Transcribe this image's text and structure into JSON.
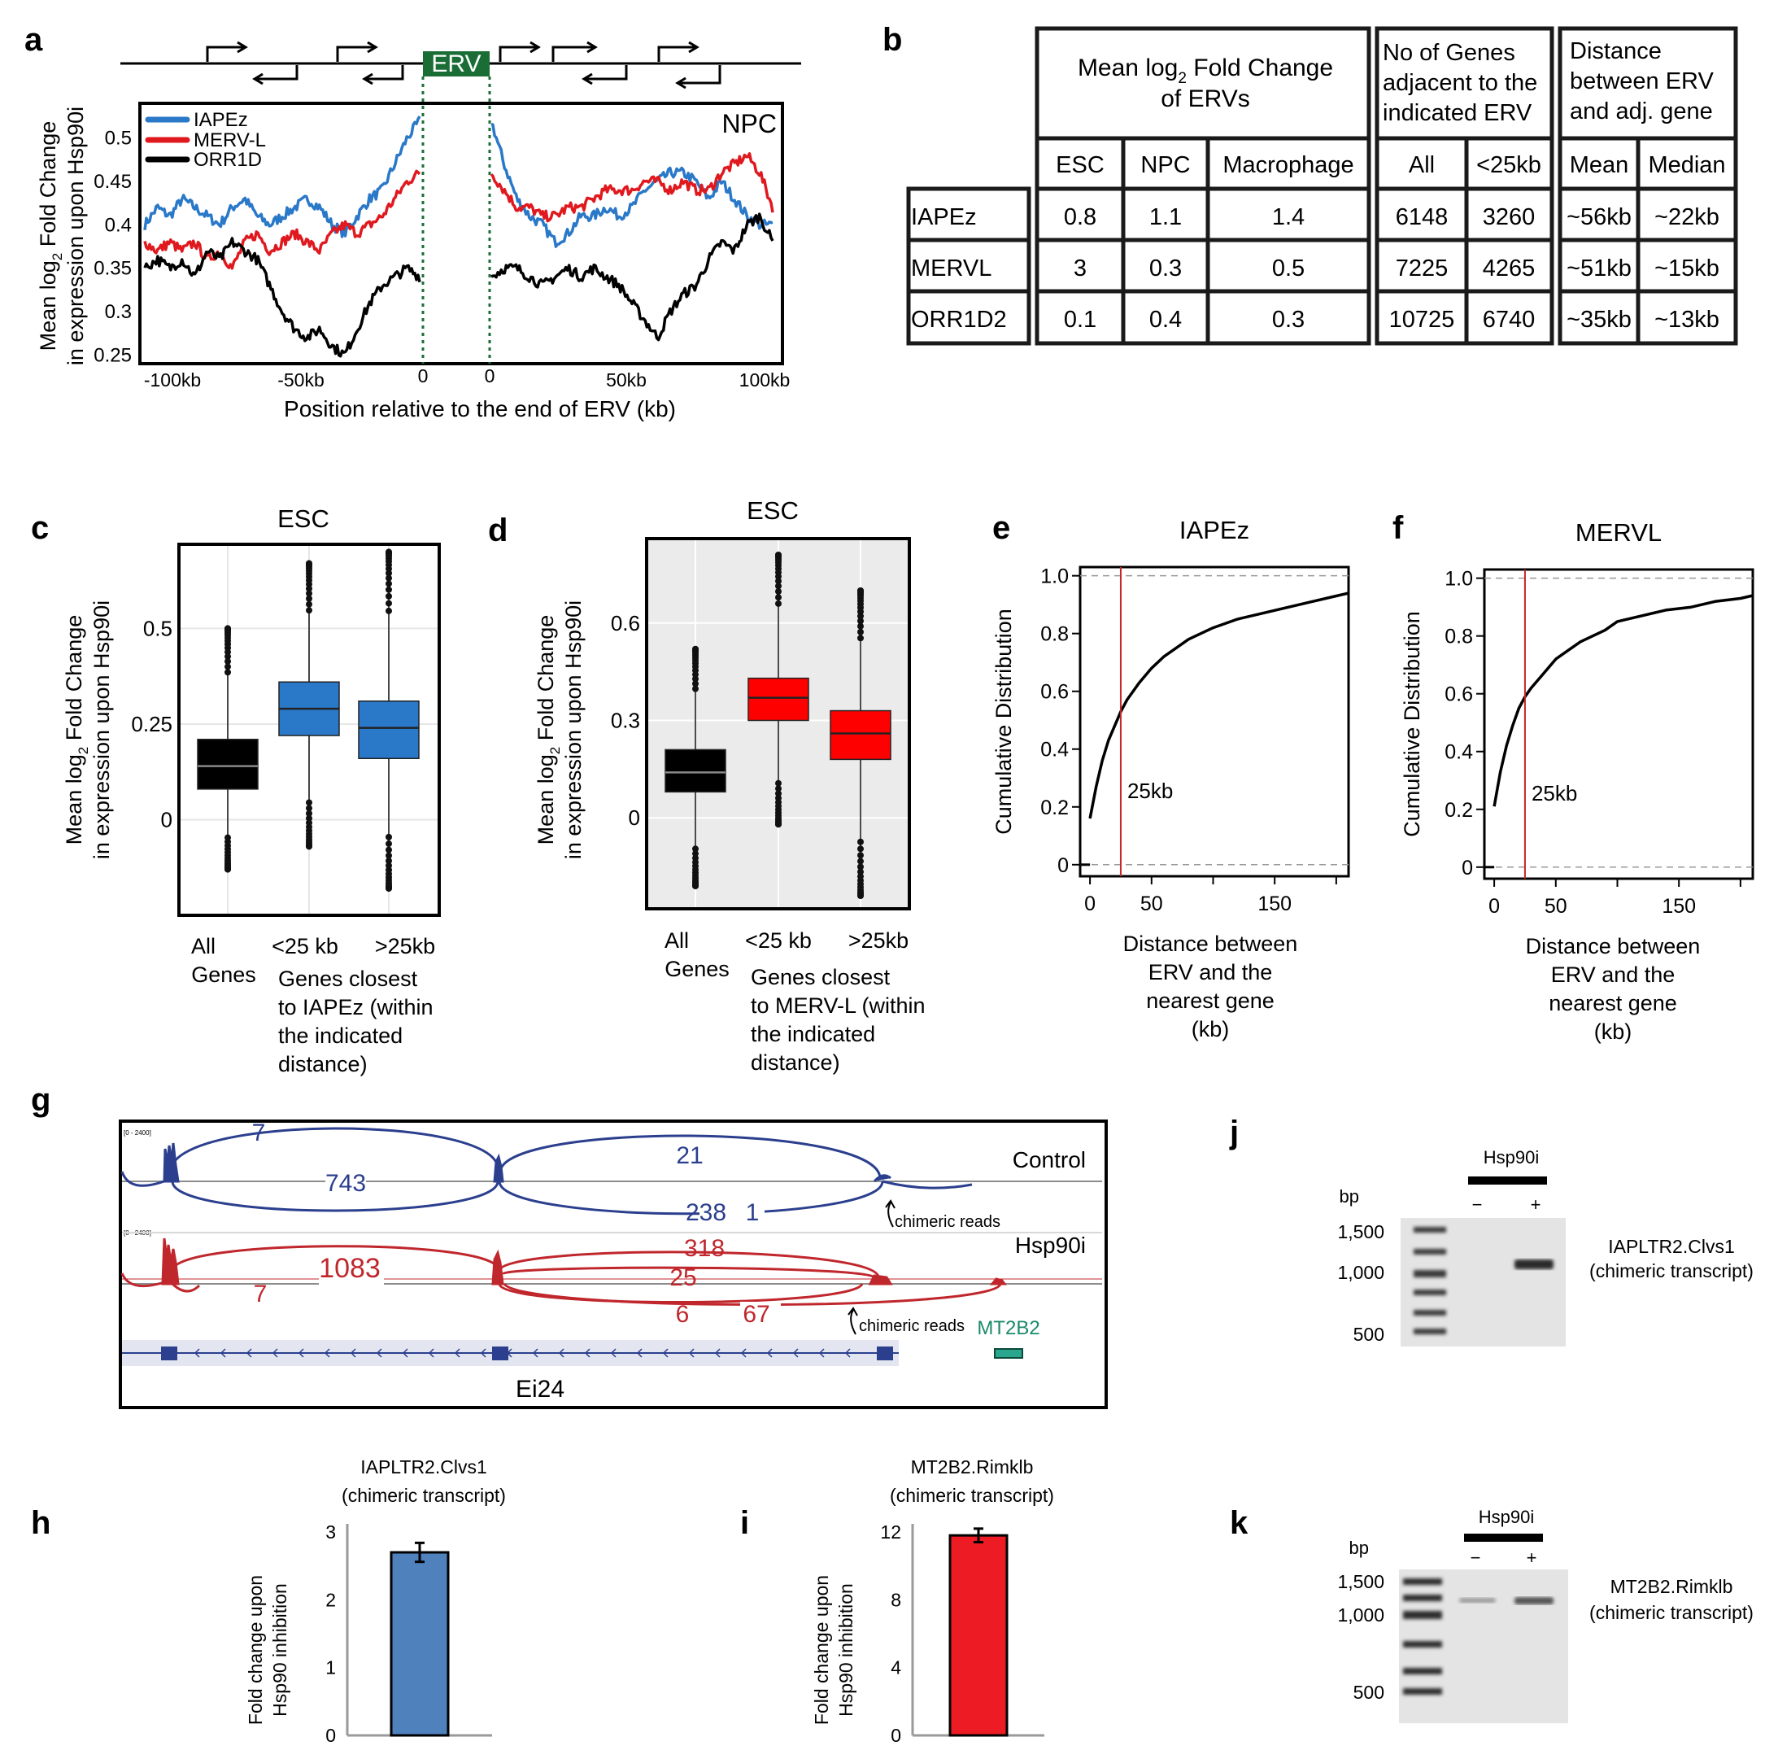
{
  "colors": {
    "iapez": "#2a78c8",
    "mervl": "#e0191f",
    "orr1d": "#000000",
    "erv_box": "#1a6e35",
    "control": "#2b3f8e",
    "hsp90i": "#c0272d",
    "mt2b2": "#1a8a6a",
    "bar_h": "#4f81bd",
    "bar_i": "#ed1c24"
  },
  "panel_labels": {
    "a": "a",
    "b": "b",
    "c": "c",
    "d": "d",
    "e": "e",
    "f": "f",
    "g": "g",
    "h": "h",
    "i": "i",
    "j": "j",
    "k": "k"
  },
  "chart_data": [
    {
      "id": "a",
      "type": "line",
      "erv_label": "ERV",
      "condition": "NPC",
      "ylabel_line1": "Mean log",
      "ylabel_sub": "2",
      "ylabel_line1b": " Fold Change",
      "ylabel_line2": "in expression upon Hsp90i",
      "xlabel": "Position relative to the end of ERV (kb)",
      "xticks": [
        "-100kb",
        "-50kb",
        "0",
        "0",
        "50kb",
        "100kb"
      ],
      "yticks": [
        "0.5",
        "0.45",
        "0.4",
        "0.35",
        "0.3",
        "0.25"
      ],
      "ylim": [
        0.24,
        0.54
      ],
      "series": [
        {
          "name": "IAPEz",
          "left": [
            0.4,
            0.42,
            0.41,
            0.43,
            0.42,
            0.41,
            0.4,
            0.42,
            0.43,
            0.41,
            0.4,
            0.41,
            0.42,
            0.43,
            0.42,
            0.4,
            0.39,
            0.41,
            0.43,
            0.44,
            0.47,
            0.5,
            0.52
          ],
          "right": [
            0.52,
            0.47,
            0.43,
            0.41,
            0.4,
            0.38,
            0.39,
            0.41,
            0.41,
            0.42,
            0.41,
            0.42,
            0.44,
            0.45,
            0.46,
            0.46,
            0.45,
            0.43,
            0.45,
            0.43,
            0.41,
            0.4,
            0.4
          ]
        },
        {
          "name": "MERV-L",
          "left": [
            0.38,
            0.37,
            0.38,
            0.37,
            0.38,
            0.36,
            0.37,
            0.35,
            0.38,
            0.39,
            0.37,
            0.38,
            0.39,
            0.38,
            0.37,
            0.39,
            0.4,
            0.39,
            0.4,
            0.41,
            0.43,
            0.45,
            0.46
          ],
          "right": [
            0.46,
            0.44,
            0.42,
            0.42,
            0.41,
            0.41,
            0.42,
            0.42,
            0.43,
            0.44,
            0.44,
            0.44,
            0.45,
            0.45,
            0.44,
            0.45,
            0.44,
            0.44,
            0.46,
            0.47,
            0.48,
            0.46,
            0.42
          ]
        },
        {
          "name": "ORR1D",
          "left": [
            0.35,
            0.36,
            0.35,
            0.36,
            0.34,
            0.37,
            0.36,
            0.38,
            0.37,
            0.36,
            0.33,
            0.3,
            0.28,
            0.27,
            0.28,
            0.26,
            0.25,
            0.28,
            0.31,
            0.33,
            0.34,
            0.35,
            0.34
          ],
          "right": [
            0.34,
            0.35,
            0.35,
            0.34,
            0.33,
            0.34,
            0.35,
            0.34,
            0.35,
            0.34,
            0.33,
            0.31,
            0.29,
            0.27,
            0.3,
            0.32,
            0.33,
            0.36,
            0.38,
            0.37,
            0.4,
            0.41,
            0.38
          ]
        }
      ]
    },
    {
      "id": "c",
      "type": "box",
      "title": "ESC",
      "ylabel_line1": "Mean log",
      "ylabel_sub": "2",
      "ylabel_line1b": " Fold Change",
      "ylabel_line2": "in expression upon Hsp90i",
      "yticks": [
        "0.5",
        "0.25",
        "0"
      ],
      "ylim": [
        -0.25,
        0.72
      ],
      "categories": [
        "All Genes",
        "<25 kb",
        ">25kb"
      ],
      "cat_line1": [
        "All",
        "<25 kb",
        ">25kb"
      ],
      "cat_line2": [
        "Genes",
        "",
        ""
      ],
      "caption": [
        "Genes closest",
        "to IAPEz (within",
        "the indicated",
        "distance)"
      ],
      "boxes": [
        {
          "q1": 0.08,
          "median": 0.14,
          "q3": 0.21,
          "wlo": -0.13,
          "whi": 0.5,
          "color": "#000000"
        },
        {
          "q1": 0.22,
          "median": 0.29,
          "q3": 0.36,
          "wlo": -0.07,
          "whi": 0.67,
          "color": "#2a78c8"
        },
        {
          "q1": 0.16,
          "median": 0.24,
          "q3": 0.31,
          "wlo": -0.18,
          "whi": 0.7,
          "color": "#2a78c8"
        }
      ]
    },
    {
      "id": "d",
      "type": "box",
      "title": "ESC",
      "ylabel_line1": "Mean log",
      "ylabel_sub": "2",
      "ylabel_line1b": " Fold Change",
      "ylabel_line2": "in expression upon Hsp90i",
      "yticks": [
        "0.6",
        "0.3",
        "0"
      ],
      "ylim": [
        -0.28,
        0.86
      ],
      "categories": [
        "All Genes",
        "<25 kb",
        ">25kb"
      ],
      "cat_line1": [
        "All",
        "<25 kb",
        ">25kb"
      ],
      "cat_line2": [
        "Genes",
        "",
        ""
      ],
      "caption": [
        "Genes closest",
        "to MERV-L (within",
        "the indicated",
        "distance)"
      ],
      "boxes": [
        {
          "q1": 0.08,
          "median": 0.14,
          "q3": 0.21,
          "wlo": -0.21,
          "whi": 0.52,
          "color": "#000000"
        },
        {
          "q1": 0.3,
          "median": 0.37,
          "q3": 0.43,
          "wlo": -0.02,
          "whi": 0.81,
          "color": "#ff0000"
        },
        {
          "q1": 0.18,
          "median": 0.26,
          "q3": 0.33,
          "wlo": -0.24,
          "whi": 0.7,
          "color": "#ff0000"
        }
      ]
    },
    {
      "id": "e",
      "type": "line",
      "title": "IAPEz",
      "ylabel": "Cumulative Distribution",
      "xlabel": [
        "Distance between",
        "ERV and the",
        "nearest gene",
        "(kb)"
      ],
      "xticks": [
        "0",
        "50",
        "150"
      ],
      "yticks": [
        "1.0",
        "0.8",
        "0.6",
        "0.4",
        "0.2",
        "0"
      ],
      "xlim": [
        -8,
        210
      ],
      "ylim": [
        -0.04,
        1.03
      ],
      "cutoff": 25,
      "cutoff_label": "25kb",
      "x": [
        0,
        5,
        10,
        15,
        20,
        25,
        30,
        40,
        50,
        60,
        70,
        80,
        90,
        100,
        120,
        140,
        160,
        180,
        200,
        210
      ],
      "y": [
        0.16,
        0.27,
        0.36,
        0.43,
        0.48,
        0.53,
        0.57,
        0.63,
        0.68,
        0.72,
        0.75,
        0.78,
        0.8,
        0.82,
        0.85,
        0.87,
        0.89,
        0.91,
        0.93,
        0.94
      ]
    },
    {
      "id": "f",
      "type": "line",
      "title": "MERVL",
      "ylabel": "Cumulative Distribution",
      "xlabel": [
        "Distance between",
        "ERV and the",
        "nearest gene",
        "(kb)"
      ],
      "xticks": [
        "0",
        "50",
        "150"
      ],
      "yticks": [
        "1.0",
        "0.8",
        "0.6",
        "0.4",
        "0.2",
        "0"
      ],
      "xlim": [
        -8,
        210
      ],
      "ylim": [
        -0.04,
        1.03
      ],
      "cutoff": 25,
      "cutoff_label": "25kb",
      "x": [
        0,
        5,
        10,
        15,
        20,
        25,
        30,
        40,
        50,
        60,
        70,
        80,
        90,
        100,
        120,
        140,
        160,
        180,
        200,
        210
      ],
      "y": [
        0.21,
        0.33,
        0.42,
        0.49,
        0.55,
        0.59,
        0.62,
        0.67,
        0.72,
        0.75,
        0.78,
        0.8,
        0.82,
        0.85,
        0.87,
        0.89,
        0.9,
        0.92,
        0.93,
        0.94
      ]
    },
    {
      "id": "h",
      "type": "bar",
      "title": [
        "IAPLTR2.Clvs1",
        "(chimeric transcript)"
      ],
      "ylabel": [
        "Fold change upon",
        "Hsp90 inhibition"
      ],
      "yticks": [
        "3",
        "2",
        "1",
        "0"
      ],
      "ylim": [
        0,
        3
      ],
      "values": [
        2.7
      ],
      "error": [
        0.14
      ]
    },
    {
      "id": "i",
      "type": "bar",
      "title": [
        "MT2B2.Rimklb",
        "(chimeric transcript)"
      ],
      "ylabel": [
        "Fold change upon",
        "Hsp90 inhibition"
      ],
      "yticks": [
        "12",
        "8",
        "4",
        "0"
      ],
      "ylim": [
        0,
        12
      ],
      "values": [
        11.8
      ],
      "error": [
        0.4
      ]
    }
  ],
  "table_b": {
    "group1": [
      "Mean log",
      "2",
      " Fold Change",
      "of ERVs"
    ],
    "group2": [
      "No of Genes",
      "adjacent to the",
      "indicated ERV"
    ],
    "group3": [
      "Distance",
      "between ERV",
      "and adj. gene"
    ],
    "subheaders": [
      "ESC",
      "NPC",
      "Macrophage",
      "All",
      "<25kb",
      "Mean",
      "Median"
    ],
    "rows": [
      {
        "name": "IAPEz",
        "cells": [
          "0.8",
          "1.1",
          "1.4",
          "6148",
          "3260",
          "~56kb",
          "~22kb"
        ]
      },
      {
        "name": "MERVL",
        "cells": [
          "3",
          "0.3",
          "0.5",
          "7225",
          "4265",
          "~51kb",
          "~15kb"
        ]
      },
      {
        "name": "ORR1D2",
        "cells": [
          "0.1",
          "0.4",
          "0.3",
          "10725",
          "6740",
          "~35kb",
          "~13kb"
        ]
      }
    ]
  },
  "sashimi_g": {
    "scale_label": "[0 - 2400]",
    "control_label": "Control",
    "hsp90i_label": "Hsp90i",
    "control_counts": [
      "7",
      "743",
      "21",
      "238",
      "1"
    ],
    "hsp90i_counts": [
      "318",
      "1083",
      "25",
      "7",
      "6",
      "67"
    ],
    "chimeric_label": "chimeric reads",
    "gene_label": "Ei24",
    "erv_label": "MT2B2"
  },
  "gels": [
    {
      "id": "j",
      "treatment": "Hsp90i",
      "minus": "−",
      "plus": "+",
      "bp": "bp",
      "ladder": [
        "1,500",
        "1,000",
        "500"
      ],
      "product": [
        "IAPLTR2.Clvs1",
        "(chimeric transcript)"
      ]
    },
    {
      "id": "k",
      "treatment": "Hsp90i",
      "minus": "−",
      "plus": "+",
      "bp": "bp",
      "ladder": [
        "1,500",
        "1,000",
        "500"
      ],
      "product": [
        "MT2B2.Rimklb",
        "(chimeric transcript)"
      ]
    }
  ]
}
